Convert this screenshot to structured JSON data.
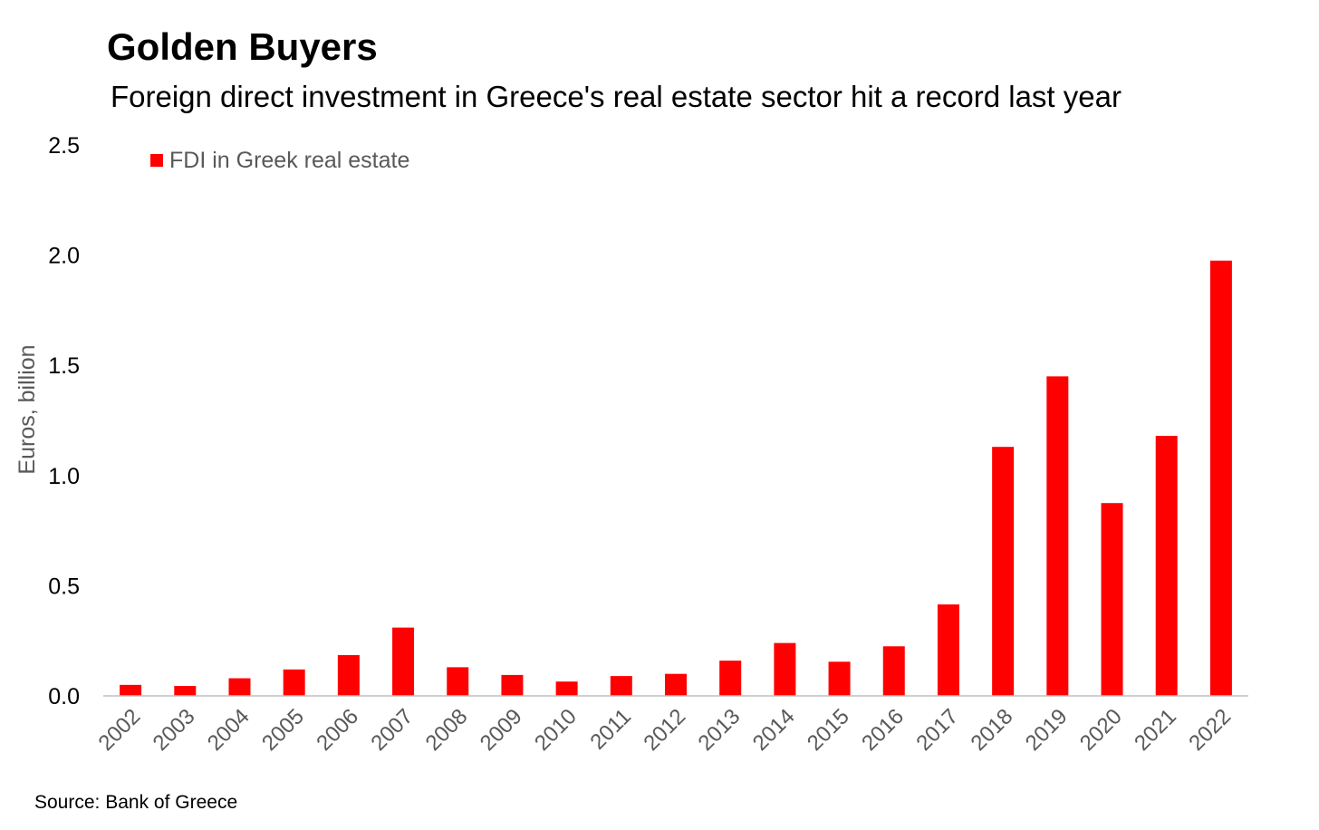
{
  "chart_data": {
    "type": "bar",
    "title": "Golden Buyers",
    "subtitle": "Foreign direct investment in Greece's real estate sector hit a record last year",
    "xlabel": "",
    "ylabel": "Euros, billion",
    "categories": [
      "2002",
      "2003",
      "2004",
      "2005",
      "2006",
      "2007",
      "2008",
      "2009",
      "2010",
      "2011",
      "2012",
      "2013",
      "2014",
      "2015",
      "2016",
      "2017",
      "2018",
      "2019",
      "2020",
      "2021",
      "2022"
    ],
    "series": [
      {
        "name": "FDI in Greek real estate",
        "values": [
          0.05,
          0.045,
          0.08,
          0.12,
          0.185,
          0.31,
          0.13,
          0.095,
          0.065,
          0.09,
          0.1,
          0.16,
          0.24,
          0.155,
          0.225,
          0.415,
          1.13,
          1.45,
          0.875,
          1.18,
          1.975
        ]
      }
    ],
    "ylim": [
      0,
      2.5
    ],
    "yticks": [
      "0.0",
      "0.5",
      "1.0",
      "1.5",
      "2.0",
      "2.5"
    ],
    "grid": false,
    "legend_position": "top-left",
    "colors": {
      "bar": "#ff0000",
      "axis": "#bfbfbf",
      "tick_text": "#000000",
      "xtick_text": "#595959",
      "ylabel_text": "#595959",
      "legend_text": "#595959"
    },
    "source": "Source: Bank of Greece"
  }
}
